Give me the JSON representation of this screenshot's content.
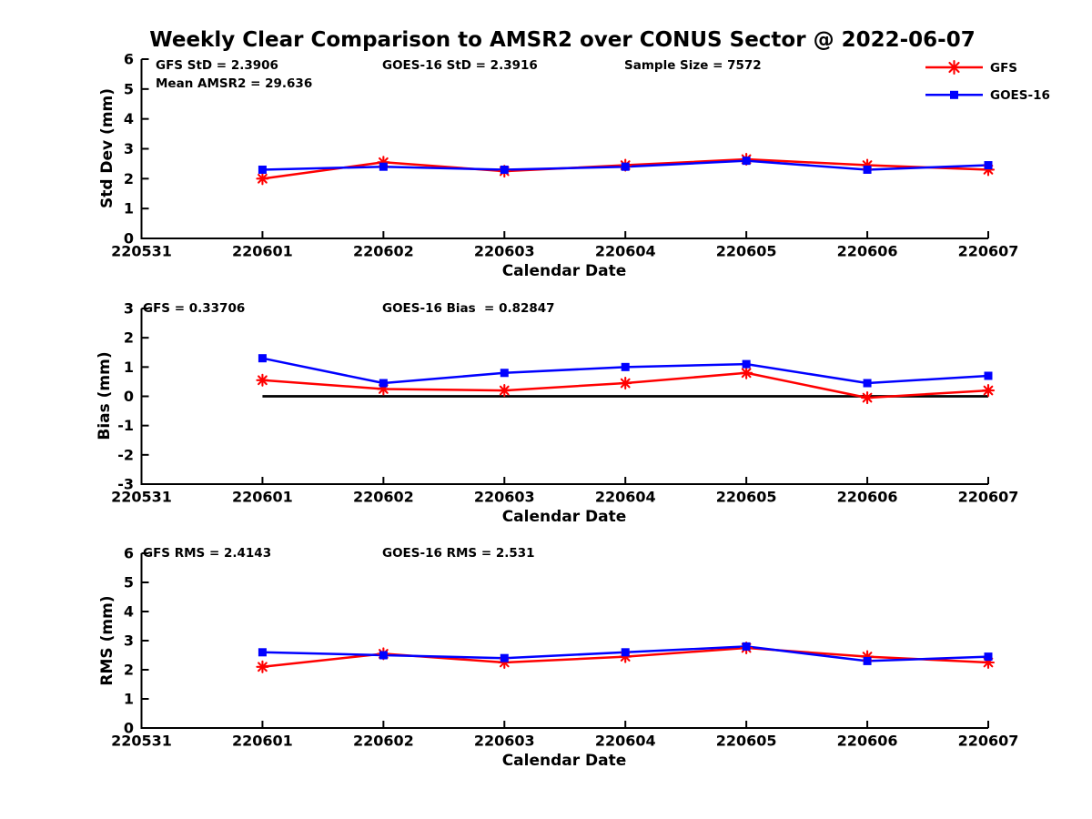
{
  "figure": {
    "title": "Weekly Clear Comparison to AMSR2 over CONUS Sector @ 2022-06-07",
    "background": "#ffffff",
    "text_color": "#000000",
    "axis_color": "#000000",
    "legend": {
      "position": "top-right",
      "entries": [
        {
          "label": "GFS",
          "color": "#ff0000",
          "marker": "asterisk"
        },
        {
          "label": "GOES-16",
          "color": "#0000ff",
          "marker": "square"
        }
      ]
    }
  },
  "chart_data": [
    {
      "type": "line",
      "panel": "std-dev",
      "xlabel": "Calendar Date",
      "ylabel": "Std Dev (mm)",
      "ylim": [
        0,
        6
      ],
      "yticks": [
        0,
        1,
        2,
        3,
        4,
        5,
        6
      ],
      "xticklabels": [
        "220531",
        "220601",
        "220602",
        "220603",
        "220604",
        "220605",
        "220606",
        "220607"
      ],
      "categories": [
        "220601",
        "220602",
        "220603",
        "220604",
        "220605",
        "220606",
        "220607"
      ],
      "grid": false,
      "zero_line": false,
      "series": [
        {
          "name": "GFS",
          "color": "#ff0000",
          "marker": "asterisk",
          "values": [
            2.0,
            2.55,
            2.25,
            2.45,
            2.65,
            2.45,
            2.3
          ]
        },
        {
          "name": "GOES-16",
          "color": "#0000ff",
          "marker": "square",
          "values": [
            2.3,
            2.4,
            2.3,
            2.4,
            2.6,
            2.3,
            2.45
          ]
        }
      ],
      "annotations": [
        {
          "id": "gfs-std",
          "text": "GFS StD = 2.3906"
        },
        {
          "id": "mean-amsr2",
          "text": "Mean AMSR2 = 29.636"
        },
        {
          "id": "goes-std",
          "text": "GOES-16 StD = 2.3916"
        },
        {
          "id": "sample-size",
          "text": "Sample Size = 7572"
        }
      ]
    },
    {
      "type": "line",
      "panel": "bias",
      "xlabel": "Calendar Date",
      "ylabel": "Bias (mm)",
      "ylim": [
        -3,
        3
      ],
      "yticks": [
        -3,
        -2,
        -1,
        0,
        1,
        2,
        3
      ],
      "xticklabels": [
        "220531",
        "220601",
        "220602",
        "220603",
        "220604",
        "220605",
        "220606",
        "220607"
      ],
      "categories": [
        "220601",
        "220602",
        "220603",
        "220604",
        "220605",
        "220606",
        "220607"
      ],
      "grid": false,
      "zero_line": true,
      "series": [
        {
          "name": "GFS",
          "color": "#ff0000",
          "marker": "asterisk",
          "values": [
            0.55,
            0.25,
            0.2,
            0.45,
            0.8,
            -0.05,
            0.2
          ]
        },
        {
          "name": "GOES-16",
          "color": "#0000ff",
          "marker": "square",
          "values": [
            1.3,
            0.45,
            0.8,
            1.0,
            1.1,
            0.45,
            0.7
          ]
        }
      ],
      "annotations": [
        {
          "id": "gfs-bias",
          "text": "GFS = 0.33706"
        },
        {
          "id": "goes-bias",
          "text": "GOES-16 Bias  = 0.82847"
        }
      ]
    },
    {
      "type": "line",
      "panel": "rms",
      "xlabel": "Calendar Date",
      "ylabel": "RMS (mm)",
      "ylim": [
        0,
        6
      ],
      "yticks": [
        0,
        1,
        2,
        3,
        4,
        5,
        6
      ],
      "xticklabels": [
        "220531",
        "220601",
        "220602",
        "220603",
        "220604",
        "220605",
        "220606",
        "220607"
      ],
      "categories": [
        "220601",
        "220602",
        "220603",
        "220604",
        "220605",
        "220606",
        "220607"
      ],
      "grid": false,
      "zero_line": false,
      "series": [
        {
          "name": "GFS",
          "color": "#ff0000",
          "marker": "asterisk",
          "values": [
            2.1,
            2.55,
            2.25,
            2.45,
            2.75,
            2.45,
            2.25
          ]
        },
        {
          "name": "GOES-16",
          "color": "#0000ff",
          "marker": "square",
          "values": [
            2.6,
            2.5,
            2.4,
            2.6,
            2.8,
            2.3,
            2.45
          ]
        }
      ],
      "annotations": [
        {
          "id": "gfs-rms",
          "text": "GFS RMS = 2.4143"
        },
        {
          "id": "goes-rms",
          "text": "GOES-16 RMS = 2.531"
        }
      ]
    }
  ]
}
